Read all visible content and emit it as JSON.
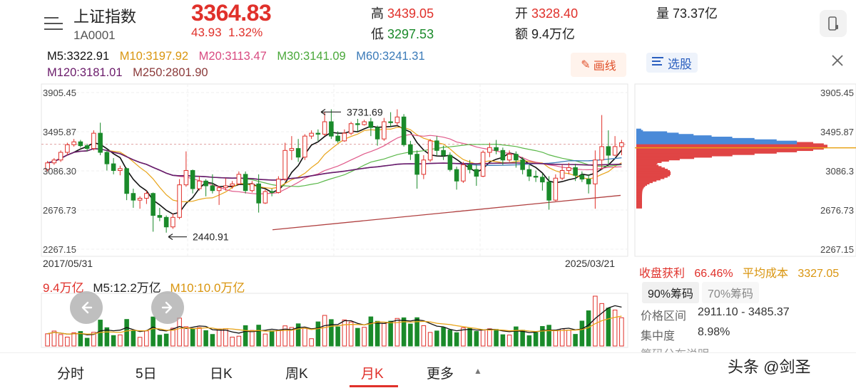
{
  "header": {
    "index_name": "上证指数",
    "index_code": "1A0001",
    "price": "3364.83",
    "change": "43.93",
    "change_pct": "1.32%",
    "high_label": "高",
    "high_value": "3439.05",
    "low_label": "低",
    "low_value": "3297.53",
    "open_label": "开",
    "open_value": "3328.40",
    "amount_label": "额",
    "amount_value": "9.4万亿",
    "volume_label": "量",
    "volume_value": "73.37亿"
  },
  "ma": {
    "m5": "M5:3322.91",
    "m10": "M10:3197.92",
    "m20": "M20:3113.47",
    "m30": "M30:3141.09",
    "m60": "M60:3241.31",
    "m120": "M120:3181.01",
    "m250": "M250:2801.90"
  },
  "toolbar": {
    "draw_label": "画线",
    "pick_label": "选股"
  },
  "axis": {
    "y_ticks": [
      "3905.45",
      "3495.87",
      "3086.30",
      "2676.73",
      "2267.15"
    ],
    "right_y_ticks": [
      "3905.45",
      "3495.87",
      "3086.3",
      "2676.73",
      "2267.15"
    ],
    "start_date": "2017/05/31",
    "end_date": "2025/03/21",
    "annot_high": "3731.69",
    "annot_low": "2440.91"
  },
  "volume": {
    "current": "9.4万亿",
    "m5": "M5:12.2万亿",
    "m10": "M10:10.0万亿"
  },
  "chips": {
    "profit_label": "收盘获利",
    "profit_value": "66.46%",
    "avg_cost_label": "平均成本",
    "avg_cost_value": "3327.05",
    "tab_90": "90%筹码",
    "tab_70": "70%筹码",
    "range_label": "价格区间",
    "range_value": "2911.10 - 3485.37",
    "conc_label": "集中度",
    "conc_value": "8.98%",
    "partial_label": "筹码分布说明"
  },
  "nav": {
    "items": [
      "分时",
      "5日",
      "日K",
      "周K",
      "月K",
      "更多"
    ],
    "active": "月K"
  },
  "watermark": "头条 @剑圣",
  "colors": {
    "up": "#e0302a",
    "down": "#1a8a2a",
    "m5": "#111111",
    "m10": "#e8a317",
    "m20": "#e05a8a",
    "m30": "#5bb84a",
    "m60": "#3a7ab8",
    "m120": "#6a1a6a",
    "m250": "#8b3a3a"
  },
  "icons": [
    "menu-icon",
    "phone-icon",
    "pencil-icon",
    "list-icon",
    "close-icon",
    "arrow-left-icon",
    "arrow-right-icon",
    "caret-up-icon"
  ],
  "chart_data": {
    "type": "candlestick",
    "period": "monthly",
    "x_range": [
      "2017/05/31",
      "2025/03/21"
    ],
    "ylim": [
      2267.15,
      3905.45
    ],
    "grid": true,
    "annotations": [
      {
        "text": "3731.69",
        "value": 3731.69
      },
      {
        "text": "2440.91",
        "value": 2440.91
      }
    ],
    "candles": [
      [
        3100,
        3170,
        3080,
        3190
      ],
      [
        3170,
        3200,
        3150,
        3220
      ],
      [
        3200,
        3280,
        3180,
        3300
      ],
      [
        3280,
        3360,
        3250,
        3380
      ],
      [
        3360,
        3390,
        3340,
        3420
      ],
      [
        3390,
        3350,
        3330,
        3410
      ],
      [
        3350,
        3320,
        3290,
        3370
      ],
      [
        3320,
        3480,
        3300,
        3510
      ],
      [
        3480,
        3280,
        3250,
        3590
      ],
      [
        3280,
        3160,
        3090,
        3300
      ],
      [
        3160,
        3090,
        3050,
        3220
      ],
      [
        3090,
        3110,
        3040,
        3140
      ],
      [
        3110,
        2850,
        2780,
        3120
      ],
      [
        2850,
        2780,
        2700,
        2900
      ],
      [
        2780,
        2800,
        2690,
        2820
      ],
      [
        2800,
        2850,
        2740,
        2880
      ],
      [
        2850,
        2620,
        2450,
        2860
      ],
      [
        2620,
        2600,
        2560,
        2700
      ],
      [
        2600,
        2500,
        2440,
        2620
      ],
      [
        2500,
        2600,
        2480,
        2640
      ],
      [
        2600,
        2940,
        2580,
        3000
      ],
      [
        2940,
        3090,
        2920,
        3290
      ],
      [
        3090,
        2900,
        2850,
        3100
      ],
      [
        2900,
        2980,
        2880,
        3030
      ],
      [
        2980,
        2930,
        2820,
        3000
      ],
      [
        2930,
        2880,
        2850,
        3050
      ],
      [
        2880,
        2910,
        2730,
        2930
      ],
      [
        2910,
        2930,
        2880,
        3010
      ],
      [
        2930,
        2950,
        2900,
        2980
      ],
      [
        2950,
        3050,
        2940,
        3080
      ],
      [
        3050,
        2880,
        2850,
        3080
      ],
      [
        2880,
        2950,
        2860,
        2980
      ],
      [
        2950,
        2750,
        2650,
        3050
      ],
      [
        2750,
        2870,
        2740,
        2890
      ],
      [
        2870,
        2860,
        2820,
        2900
      ],
      [
        2860,
        3000,
        2850,
        3030
      ],
      [
        3000,
        3300,
        2980,
        3380
      ],
      [
        3300,
        3320,
        3200,
        3450
      ],
      [
        3320,
        3230,
        3180,
        3420
      ],
      [
        3230,
        3450,
        3200,
        3470
      ],
      [
        3450,
        3480,
        3420,
        3510
      ],
      [
        3480,
        3470,
        3400,
        3520
      ],
      [
        3470,
        3600,
        3450,
        3700
      ],
      [
        3600,
        3450,
        3420,
        3730
      ],
      [
        3450,
        3400,
        3380,
        3500
      ],
      [
        3400,
        3480,
        3390,
        3520
      ],
      [
        3480,
        3580,
        3460,
        3600
      ],
      [
        3580,
        3570,
        3500,
        3630
      ],
      [
        3570,
        3600,
        3560,
        3620
      ],
      [
        3600,
        3540,
        3450,
        3640
      ],
      [
        3540,
        3420,
        3350,
        3560
      ],
      [
        3420,
        3600,
        3400,
        3640
      ],
      [
        3600,
        3590,
        3550,
        3700
      ],
      [
        3590,
        3650,
        3560,
        3730
      ],
      [
        3650,
        3360,
        3340,
        3680
      ],
      [
        3360,
        3260,
        3200,
        3400
      ],
      [
        3260,
        3050,
        2900,
        3300
      ],
      [
        3050,
        3200,
        3000,
        3250
      ],
      [
        3200,
        3400,
        3180,
        3420
      ],
      [
        3400,
        3300,
        3250,
        3450
      ],
      [
        3300,
        3250,
        3200,
        3350
      ],
      [
        3250,
        3100,
        3080,
        3280
      ],
      [
        3100,
        2980,
        2890,
        3130
      ],
      [
        2980,
        3150,
        2960,
        3180
      ],
      [
        3150,
        3100,
        3060,
        3200
      ],
      [
        3100,
        3030,
        2930,
        3150
      ],
      [
        3030,
        3280,
        3020,
        3300
      ],
      [
        3280,
        3330,
        3230,
        3380
      ],
      [
        3330,
        3300,
        3260,
        3410
      ],
      [
        3300,
        3200,
        3150,
        3330
      ],
      [
        3200,
        3260,
        3180,
        3300
      ],
      [
        3260,
        3200,
        3120,
        3290
      ],
      [
        3200,
        3100,
        3050,
        3230
      ],
      [
        3100,
        3030,
        2980,
        3150
      ],
      [
        3030,
        3020,
        2970,
        3090
      ],
      [
        3020,
        2970,
        2880,
        3060
      ],
      [
        2970,
        2780,
        2680,
        3030
      ],
      [
        2780,
        3010,
        2770,
        3050
      ],
      [
        3010,
        3090,
        2990,
        3150
      ],
      [
        3090,
        3120,
        3050,
        3170
      ],
      [
        3120,
        3040,
        2980,
        3160
      ],
      [
        3040,
        3000,
        2970,
        3080
      ],
      [
        3000,
        2950,
        2850,
        3050
      ],
      [
        2950,
        3200,
        2690,
        3300
      ],
      [
        3200,
        3340,
        3100,
        3670
      ],
      [
        3340,
        3250,
        3150,
        3510
      ],
      [
        3250,
        3340,
        3240,
        3450
      ],
      [
        3340,
        3380,
        3250,
        3410
      ]
    ]
  }
}
